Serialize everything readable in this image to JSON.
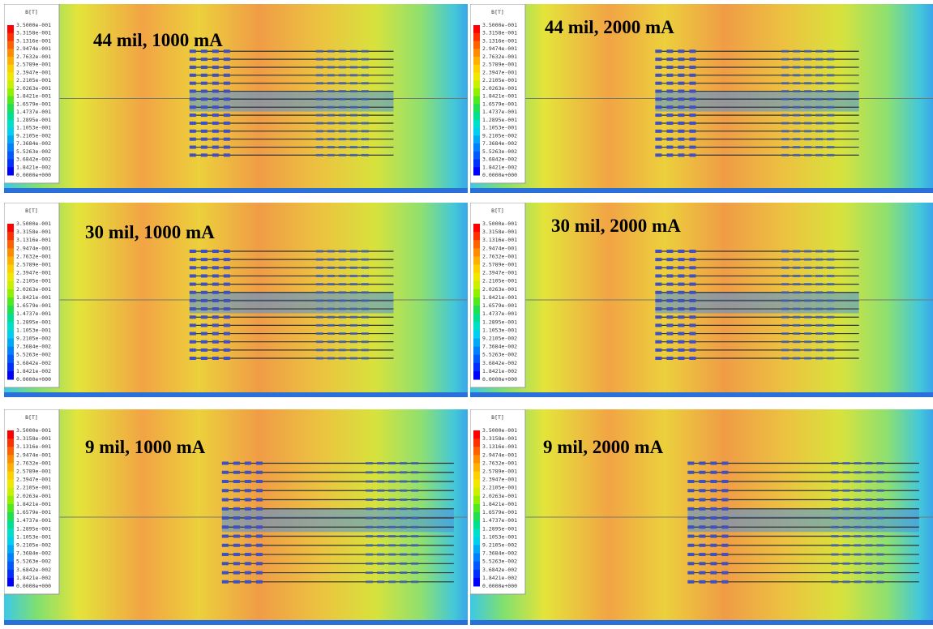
{
  "legend": {
    "title": "B[T]",
    "labels": [
      "3.5000e-001",
      "3.3158e-001",
      "3.1316e-001",
      "2.9474e-001",
      "2.7632e-001",
      "2.5789e-001",
      "2.3947e-001",
      "2.2105e-001",
      "2.0263e-001",
      "1.8421e-001",
      "1.6579e-001",
      "1.4737e-001",
      "1.2895e-001",
      "1.1053e-001",
      "9.2105e-002",
      "7.3684e-002",
      "5.5263e-002",
      "3.6842e-002",
      "1.8421e-002",
      "0.0000e+000"
    ]
  },
  "panels": [
    {
      "title": "44 mil, 1000 mA"
    },
    {
      "title": "44 mil, 2000 mA"
    },
    {
      "title": "30 mil, 1000 mA"
    },
    {
      "title": "30 mil, 2000 mA"
    },
    {
      "title": "9 mil, 1000  mA"
    },
    {
      "title": "9 mil, 2000 mA"
    }
  ]
}
